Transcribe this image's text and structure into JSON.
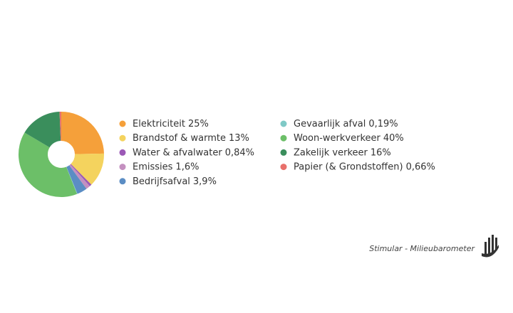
{
  "chart_data": {
    "type": "donut",
    "series": [
      {
        "name": "Elektriciteit",
        "color": "#f5a03a",
        "values": [
          25
        ],
        "value_labels": [
          "25%"
        ]
      },
      {
        "name": "Brandstof & warmte",
        "color": "#f4d35e",
        "values": [
          13
        ],
        "value_labels": [
          "13%"
        ]
      },
      {
        "name": "Water & afvalwater",
        "color": "#9b59b6",
        "values": [
          0.84
        ],
        "value_labels": [
          "0,84%"
        ]
      },
      {
        "name": "Emissies",
        "color": "#c490c0",
        "values": [
          1.6
        ],
        "value_labels": [
          "1,6%"
        ]
      },
      {
        "name": "Bedrijfsafval",
        "color": "#5b8dc4",
        "values": [
          3.9
        ],
        "value_labels": [
          "3,9%"
        ]
      },
      {
        "name": "Gevaarlijk afval",
        "color": "#7fc9c6",
        "values": [
          0.19
        ],
        "value_labels": [
          "0,19%"
        ]
      },
      {
        "name": "Woon-werkverkeer",
        "color": "#6cbf68",
        "values": [
          40
        ],
        "value_labels": [
          "40%"
        ]
      },
      {
        "name": "Zakelijk verkeer",
        "color": "#3a8e5c",
        "values": [
          16
        ],
        "value_labels": [
          "16%"
        ]
      },
      {
        "name": "Papier (& Grondstoffen)",
        "color": "#e8706b",
        "values": [
          0.66
        ],
        "value_labels": [
          "0,66%"
        ]
      }
    ]
  },
  "footer": {
    "credit": "Stimular - Milieubarometer"
  }
}
